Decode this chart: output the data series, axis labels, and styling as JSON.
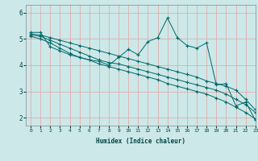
{
  "xlabel": "Humidex (Indice chaleur)",
  "ylabel": "",
  "bg_color": "#cce8e8",
  "grid_color": "#e8a0a0",
  "line_color": "#006868",
  "xlim": [
    -0.5,
    23
  ],
  "ylim": [
    1.7,
    6.3
  ],
  "yticks": [
    2,
    3,
    4,
    5,
    6
  ],
  "xticks": [
    0,
    1,
    2,
    3,
    4,
    5,
    6,
    7,
    8,
    9,
    10,
    11,
    12,
    13,
    14,
    15,
    16,
    17,
    18,
    19,
    20,
    21,
    22,
    23
  ],
  "line1_x": [
    0,
    1,
    2,
    3,
    4,
    5,
    6,
    7,
    8,
    9,
    10,
    11,
    12,
    13,
    14,
    15,
    16,
    17,
    18,
    19,
    20,
    21,
    22,
    23
  ],
  "line1_y": [
    5.25,
    5.25,
    4.7,
    4.55,
    4.4,
    4.3,
    4.2,
    4.15,
    4.0,
    4.3,
    4.6,
    4.4,
    4.9,
    5.05,
    5.8,
    5.05,
    4.75,
    4.65,
    4.85,
    3.25,
    3.3,
    2.45,
    2.6,
    1.9
  ],
  "line2_x": [
    0,
    1,
    2,
    3,
    4,
    5,
    6,
    7,
    8,
    9,
    10,
    11,
    12,
    13,
    14,
    15,
    16,
    17,
    18,
    19,
    20,
    21,
    22,
    23
  ],
  "line2_y": [
    5.2,
    5.15,
    5.05,
    4.95,
    4.85,
    4.75,
    4.65,
    4.55,
    4.45,
    4.35,
    4.25,
    4.15,
    4.05,
    3.95,
    3.85,
    3.75,
    3.65,
    3.55,
    3.4,
    3.3,
    3.2,
    3.05,
    2.7,
    2.3
  ],
  "line3_x": [
    0,
    1,
    2,
    3,
    4,
    5,
    6,
    7,
    8,
    9,
    10,
    11,
    12,
    13,
    14,
    15,
    16,
    17,
    18,
    19,
    20,
    21,
    22,
    23
  ],
  "line3_y": [
    5.15,
    5.1,
    4.95,
    4.8,
    4.65,
    4.5,
    4.35,
    4.2,
    4.1,
    4.05,
    3.95,
    3.85,
    3.75,
    3.65,
    3.55,
    3.45,
    3.35,
    3.25,
    3.15,
    3.05,
    2.9,
    2.7,
    2.5,
    2.2
  ],
  "line4_x": [
    0,
    1,
    2,
    3,
    4,
    5,
    6,
    7,
    8,
    9,
    10,
    11,
    12,
    13,
    14,
    15,
    16,
    17,
    18,
    19,
    20,
    21,
    22,
    23
  ],
  "line4_y": [
    5.1,
    5.0,
    4.85,
    4.65,
    4.45,
    4.3,
    4.2,
    4.05,
    3.95,
    3.85,
    3.75,
    3.65,
    3.55,
    3.45,
    3.3,
    3.2,
    3.1,
    3.0,
    2.9,
    2.75,
    2.6,
    2.4,
    2.2,
    1.95
  ]
}
